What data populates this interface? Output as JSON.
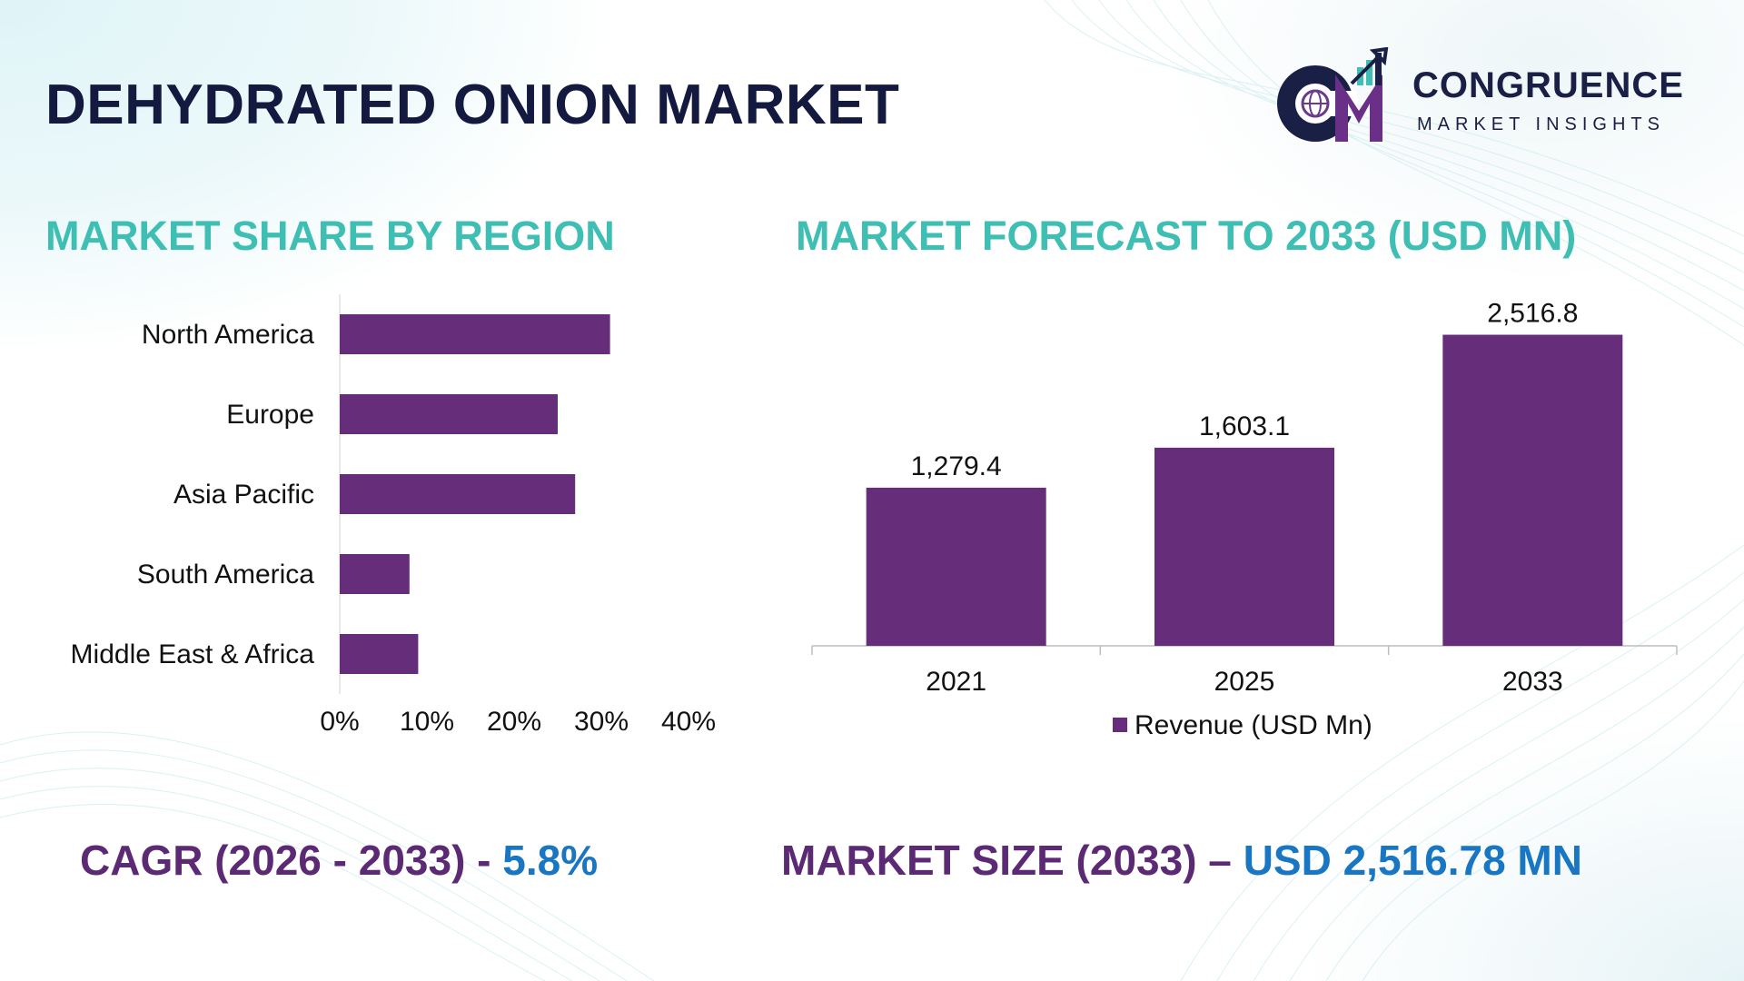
{
  "title": "DEHYDRATED ONION MARKET",
  "logo": {
    "line1": "CONGRUENCE",
    "line2": "MARKET INSIGHTS",
    "monogram": "CM"
  },
  "colors": {
    "bar": "#652d7a",
    "section_title": "#3fbfb4",
    "footer_label": "#5c2a74",
    "footer_value": "#1876c2",
    "title": "#141a3f"
  },
  "chart_data": [
    {
      "type": "bar",
      "orientation": "horizontal",
      "title": "MARKET SHARE BY REGION",
      "categories": [
        "North America",
        "Europe",
        "Asia Pacific",
        "South America",
        "Middle East & Africa"
      ],
      "values": [
        31,
        25,
        27,
        8,
        9
      ],
      "xlim": [
        0,
        40
      ],
      "xticks": [
        "0%",
        "10%",
        "20%",
        "30%",
        "40%"
      ],
      "grid": false,
      "legend": "none"
    },
    {
      "type": "bar",
      "orientation": "vertical",
      "title": "MARKET FORECAST TO 2033 (USD MN)",
      "categories": [
        "2021",
        "2025",
        "2033"
      ],
      "series": [
        {
          "name": "Revenue (USD Mn)",
          "values": [
            1279.4,
            1603.1,
            2516.8
          ]
        }
      ],
      "data_labels": [
        "1,279.4",
        "1,603.1",
        "2,516.8"
      ],
      "ylim": [
        0,
        2800
      ],
      "grid": false,
      "legend": "bottom"
    }
  ],
  "footer": {
    "cagr_label": "CAGR (2026 - 2033) - ",
    "cagr_value": "5.8%",
    "size_label": "MARKET SIZE (2033) – ",
    "size_value": "USD 2,516.78 MN"
  }
}
